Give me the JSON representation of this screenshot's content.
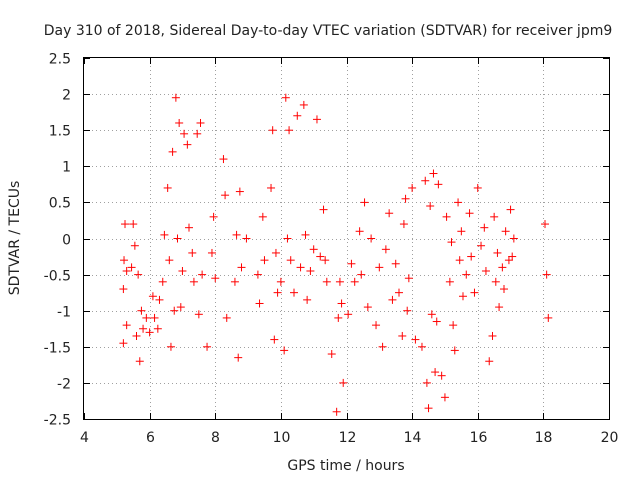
{
  "chart_data": {
    "type": "scatter",
    "title": "Day 310 of 2018, Sidereal Day-to-day VTEC variation (SDTVAR) for receiver jpm9",
    "xlabel": "GPS time / hours",
    "ylabel": "SDTVAR / TECUs",
    "xlim": [
      4,
      20
    ],
    "ylim": [
      -2.5,
      2.5
    ],
    "xticks": [
      4,
      6,
      8,
      10,
      12,
      14,
      16,
      18,
      20
    ],
    "xtick_labels": [
      "4",
      "6",
      "8",
      "10",
      "12",
      "14",
      "16",
      "18",
      "20"
    ],
    "yticks": [
      2.5,
      2,
      1.5,
      1,
      0.5,
      0,
      -0.5,
      -1,
      -1.5,
      -2,
      -2.5
    ],
    "ytick_labels": [
      "2.5",
      "2",
      "1.5",
      "1",
      "0.5",
      "0",
      "-0.5",
      "-1",
      "-1.5",
      "-2",
      "-2.5"
    ],
    "grid": true,
    "marker": "+",
    "color": "#ff0000",
    "series": [
      {
        "name": "SDTVAR",
        "points": [
          [
            5.2,
            -1.45
          ],
          [
            5.2,
            -0.7
          ],
          [
            5.22,
            -0.3
          ],
          [
            5.25,
            0.2
          ],
          [
            5.3,
            -1.2
          ],
          [
            5.3,
            -0.45
          ],
          [
            5.45,
            -0.4
          ],
          [
            5.5,
            0.2
          ],
          [
            5.55,
            -0.1
          ],
          [
            5.6,
            -1.35
          ],
          [
            5.65,
            -0.5
          ],
          [
            5.7,
            -1.7
          ],
          [
            5.75,
            -1.0
          ],
          [
            5.8,
            -1.25
          ],
          [
            5.9,
            -1.1
          ],
          [
            6.0,
            -1.3
          ],
          [
            6.1,
            -0.8
          ],
          [
            6.15,
            -1.1
          ],
          [
            6.25,
            -1.25
          ],
          [
            6.3,
            -0.85
          ],
          [
            6.4,
            -0.6
          ],
          [
            6.45,
            0.05
          ],
          [
            6.55,
            0.7
          ],
          [
            6.6,
            -0.3
          ],
          [
            6.65,
            -1.5
          ],
          [
            6.7,
            1.2
          ],
          [
            6.75,
            -1.0
          ],
          [
            6.8,
            1.95
          ],
          [
            6.85,
            0.0
          ],
          [
            6.9,
            1.6
          ],
          [
            6.95,
            -0.95
          ],
          [
            7.0,
            -0.45
          ],
          [
            7.05,
            1.45
          ],
          [
            7.15,
            1.3
          ],
          [
            7.2,
            0.15
          ],
          [
            7.3,
            -0.2
          ],
          [
            7.35,
            -0.6
          ],
          [
            7.45,
            1.45
          ],
          [
            7.5,
            -1.05
          ],
          [
            7.55,
            1.6
          ],
          [
            7.6,
            -0.5
          ],
          [
            7.75,
            -1.5
          ],
          [
            7.9,
            -0.2
          ],
          [
            7.95,
            0.3
          ],
          [
            8.0,
            -0.55
          ],
          [
            8.25,
            1.1
          ],
          [
            8.3,
            0.6
          ],
          [
            8.35,
            -1.1
          ],
          [
            8.6,
            -0.6
          ],
          [
            8.65,
            0.05
          ],
          [
            8.7,
            -1.65
          ],
          [
            8.75,
            0.65
          ],
          [
            8.8,
            -0.4
          ],
          [
            8.95,
            0.0
          ],
          [
            9.3,
            -0.5
          ],
          [
            9.35,
            -0.9
          ],
          [
            9.45,
            0.3
          ],
          [
            9.5,
            -0.3
          ],
          [
            9.7,
            0.7
          ],
          [
            9.75,
            1.5
          ],
          [
            9.8,
            -1.4
          ],
          [
            9.85,
            -0.2
          ],
          [
            9.9,
            -0.75
          ],
          [
            10.0,
            -0.6
          ],
          [
            10.1,
            -1.55
          ],
          [
            10.15,
            1.95
          ],
          [
            10.2,
            0.0
          ],
          [
            10.25,
            1.5
          ],
          [
            10.3,
            -0.3
          ],
          [
            10.4,
            -0.75
          ],
          [
            10.5,
            1.7
          ],
          [
            10.6,
            -0.4
          ],
          [
            10.7,
            1.85
          ],
          [
            10.75,
            0.05
          ],
          [
            10.8,
            -0.85
          ],
          [
            10.9,
            -0.45
          ],
          [
            11.0,
            -0.15
          ],
          [
            11.1,
            1.65
          ],
          [
            11.2,
            -0.25
          ],
          [
            11.3,
            0.4
          ],
          [
            11.35,
            -0.3
          ],
          [
            11.4,
            -0.6
          ],
          [
            11.55,
            -1.6
          ],
          [
            11.7,
            -2.4
          ],
          [
            11.75,
            -1.1
          ],
          [
            11.8,
            -0.6
          ],
          [
            11.85,
            -0.9
          ],
          [
            11.9,
            -2.0
          ],
          [
            12.05,
            -1.05
          ],
          [
            12.15,
            -0.35
          ],
          [
            12.25,
            -0.6
          ],
          [
            12.4,
            0.1
          ],
          [
            12.45,
            -0.5
          ],
          [
            12.55,
            0.5
          ],
          [
            12.65,
            -0.95
          ],
          [
            12.75,
            0.0
          ],
          [
            12.9,
            -1.2
          ],
          [
            13.0,
            -0.4
          ],
          [
            13.1,
            -1.5
          ],
          [
            13.2,
            -0.15
          ],
          [
            13.3,
            0.35
          ],
          [
            13.4,
            -0.85
          ],
          [
            13.5,
            -0.35
          ],
          [
            13.6,
            -0.75
          ],
          [
            13.7,
            -1.35
          ],
          [
            13.75,
            0.2
          ],
          [
            13.8,
            0.55
          ],
          [
            13.85,
            -1.0
          ],
          [
            13.9,
            -0.55
          ],
          [
            14.0,
            0.7
          ],
          [
            14.1,
            -1.4
          ],
          [
            14.3,
            -1.5
          ],
          [
            14.4,
            0.8
          ],
          [
            14.45,
            -2.0
          ],
          [
            14.5,
            -2.35
          ],
          [
            14.55,
            0.45
          ],
          [
            14.6,
            -1.05
          ],
          [
            14.65,
            0.9
          ],
          [
            14.7,
            -1.85
          ],
          [
            14.75,
            -1.15
          ],
          [
            14.8,
            0.75
          ],
          [
            14.9,
            -1.9
          ],
          [
            15.0,
            -2.2
          ],
          [
            15.05,
            0.3
          ],
          [
            15.15,
            -0.6
          ],
          [
            15.2,
            -0.05
          ],
          [
            15.25,
            -1.2
          ],
          [
            15.3,
            -1.55
          ],
          [
            15.4,
            0.5
          ],
          [
            15.45,
            -0.3
          ],
          [
            15.5,
            0.1
          ],
          [
            15.55,
            -0.8
          ],
          [
            15.65,
            -0.5
          ],
          [
            15.75,
            0.35
          ],
          [
            15.8,
            -0.25
          ],
          [
            15.9,
            -0.75
          ],
          [
            16.0,
            0.7
          ],
          [
            16.1,
            -0.1
          ],
          [
            16.2,
            0.15
          ],
          [
            16.25,
            -0.45
          ],
          [
            16.35,
            -1.7
          ],
          [
            16.45,
            -1.35
          ],
          [
            16.5,
            0.3
          ],
          [
            16.55,
            -0.6
          ],
          [
            16.6,
            -0.2
          ],
          [
            16.65,
            -0.95
          ],
          [
            16.75,
            -0.4
          ],
          [
            16.8,
            -0.7
          ],
          [
            16.85,
            0.1
          ],
          [
            16.95,
            -0.3
          ],
          [
            17.0,
            0.4
          ],
          [
            17.05,
            -0.25
          ],
          [
            17.1,
            0.0
          ],
          [
            18.05,
            0.2
          ],
          [
            18.1,
            -0.5
          ],
          [
            18.15,
            -1.1
          ]
        ]
      }
    ]
  }
}
